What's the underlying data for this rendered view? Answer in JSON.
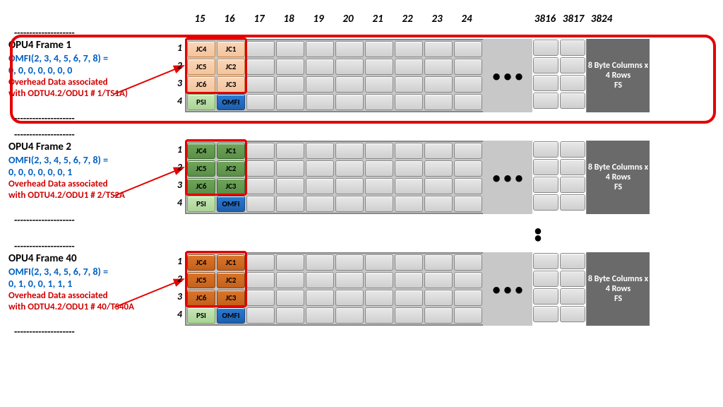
{
  "columns": {
    "start": [
      "15",
      "16",
      "17",
      "18",
      "19",
      "20",
      "21",
      "22",
      "23",
      "24"
    ],
    "end": [
      "3816",
      "3817",
      "3824"
    ]
  },
  "row_numbers": [
    "1",
    "2",
    "3",
    "4"
  ],
  "fs_text": "8 Byte Columns x 4 Rows FS",
  "ellipsis": "• • •",
  "psi": "PSI",
  "omfi": "OMFI",
  "jc": {
    "c15": [
      "JC4",
      "JC5",
      "JC6"
    ],
    "c16": [
      "JC1",
      "JC2",
      "JC3"
    ]
  },
  "frames": [
    {
      "title": "OPU4 Frame 1",
      "omfi_line1": "OMFI(2, 3, 4, 5, 6, 7, 8) =",
      "omfi_line2": "0, 0, 0, 0, 0, 0, 0",
      "note_line1": "Overhead Data associated",
      "note_line2": "with ODTU4.2/ODU1 # 1/TS1A)",
      "jc_class": "jc-peach",
      "big_outline": true
    },
    {
      "title": "OPU4 Frame 2",
      "omfi_line1": "OMFI(2, 3, 4, 5, 6, 7, 8) =",
      "omfi_line2": "0, 0, 0, 0, 0, 0, 1",
      "note_line1": "Overhead Data associated",
      "note_line2": "with ODTU4.2/ODU1 # 2/TS2A",
      "jc_class": "jc-green",
      "big_outline": false
    },
    {
      "title": "OPU4 Frame 40",
      "omfi_line1": "OMFI(2, 3, 4, 5, 6, 7, 8) =",
      "omfi_line2": "0, 1, 0, 0, 1, 1, 1",
      "note_line1": "Overhead Data associated",
      "note_line2": "with ODTU4.2/ODU1 # 40/TS40A",
      "jc_class": "jc-orange",
      "big_outline": false
    }
  ],
  "colors": {
    "red": "#e40000",
    "blue": "#0060c0"
  }
}
